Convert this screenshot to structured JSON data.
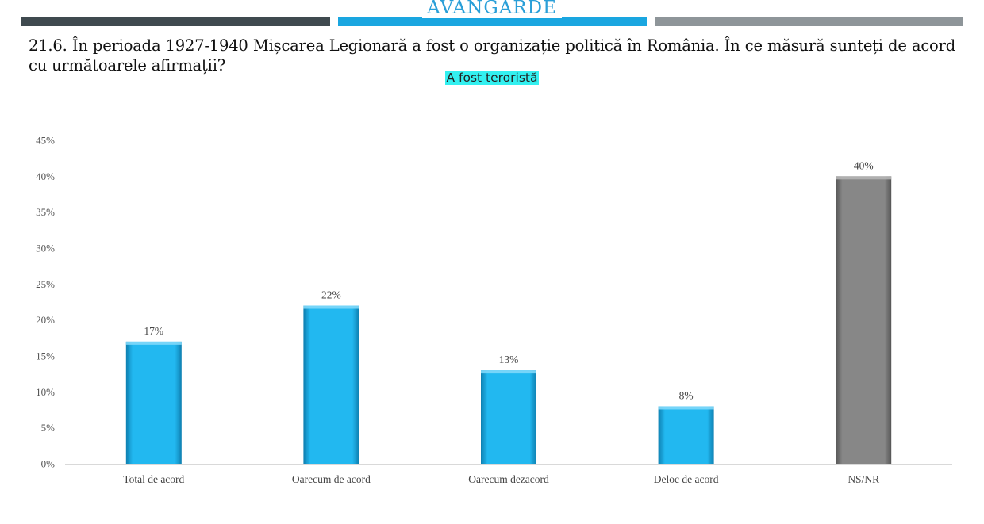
{
  "header": {
    "logo_text": "AVANGARDE",
    "colors": {
      "dark": "#3f4a4f",
      "blue": "#1aa6e0",
      "gray": "#8e9599"
    }
  },
  "question": "21.6. În perioada 1927-1940 Mișcarea Legionară a fost o organizație politică în România. În ce măsură sunteți de acord cu următoarele afirmații?",
  "subtitle": "A fost teroristă",
  "chart_data": {
    "type": "bar",
    "title": "A fost teroristă",
    "categories": [
      "Total de acord",
      "Oarecum de acord",
      "Oarecum dezacord",
      "Deloc de acord",
      "NS/NR"
    ],
    "values": [
      17,
      22,
      13,
      8,
      40
    ],
    "value_labels": [
      "17%",
      "22%",
      "13%",
      "8%",
      "40%"
    ],
    "bar_colors": [
      "#1fb6ee",
      "#1fb6ee",
      "#1fb6ee",
      "#1fb6ee",
      "#858585"
    ],
    "ylim": [
      0,
      45
    ],
    "yticks": [
      0,
      5,
      10,
      15,
      20,
      25,
      30,
      35,
      40,
      45
    ],
    "ytick_labels": [
      "0%",
      "5%",
      "10%",
      "15%",
      "20%",
      "25%",
      "30%",
      "35%",
      "40%",
      "45%"
    ],
    "xlabel": "",
    "ylabel": "",
    "grid": false,
    "legend": "none"
  }
}
